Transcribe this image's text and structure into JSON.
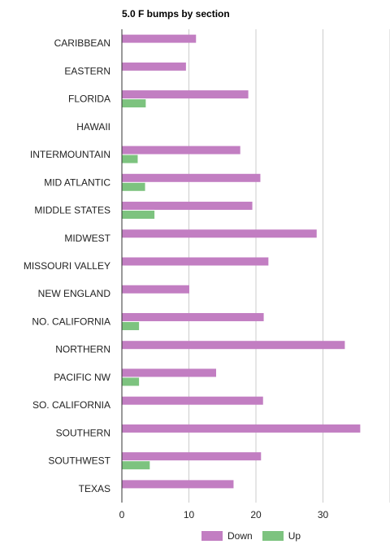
{
  "chart_data": {
    "type": "bar",
    "orientation": "horizontal",
    "title": "5.0 F bumps by section",
    "xlabel": "",
    "ylabel": "",
    "categories": [
      "CARIBBEAN",
      "EASTERN",
      "FLORIDA",
      "HAWAII",
      "INTERMOUNTAIN",
      "MID ATLANTIC",
      "MIDDLE STATES",
      "MIDWEST",
      "MISSOURI VALLEY",
      "NEW ENGLAND",
      "NO. CALIFORNIA",
      "NORTHERN",
      "PACIFIC NW",
      "SO. CALIFORNIA",
      "SOUTHERN",
      "SOUTHWEST",
      "TEXAS"
    ],
    "series": [
      {
        "name": "Down",
        "color": "#c27ec2",
        "values": [
          11,
          9.5,
          18.8,
          0,
          17.6,
          20.6,
          19.4,
          29,
          21.8,
          10,
          21.1,
          33.2,
          14,
          21,
          35.5,
          20.7,
          16.6
        ]
      },
      {
        "name": "Up",
        "color": "#7dc37f",
        "values": [
          0,
          0,
          3.5,
          0,
          2.3,
          3.4,
          4.8,
          0,
          0,
          0,
          2.5,
          0,
          2.5,
          0,
          0,
          4.1,
          0
        ]
      }
    ],
    "xlim": [
      0,
      40
    ],
    "xticks": [
      0,
      10,
      20,
      30
    ],
    "grid": true,
    "legend": "bottom"
  }
}
